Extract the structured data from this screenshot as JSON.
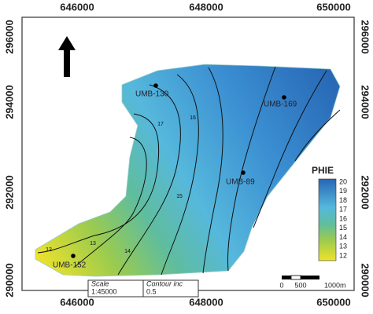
{
  "axes": {
    "top": [
      646000,
      648000,
      650000
    ],
    "bottom": [
      646000,
      648000,
      650000
    ],
    "left": [
      296000,
      294000,
      292000,
      290000
    ],
    "right": [
      296000,
      294000,
      292000,
      290000
    ]
  },
  "wells": [
    {
      "label": "UMB-130"
    },
    {
      "label": "UMB-169"
    },
    {
      "label": "UMB-89"
    },
    {
      "label": "UMB-152"
    }
  ],
  "contour_labels": [
    "17",
    "16",
    "15",
    "14",
    "13",
    "12"
  ],
  "legend": {
    "title": "PHIE",
    "ticks": [
      20,
      19,
      18,
      17,
      16,
      15,
      14,
      13,
      12
    ]
  },
  "scale_box": {
    "scale_label": "Scale",
    "scale": "1:45000",
    "contour_label": "Contour inc",
    "contour": "0.5"
  },
  "scale_bar": {
    "labels": [
      "0",
      "500",
      "1000m"
    ]
  }
}
